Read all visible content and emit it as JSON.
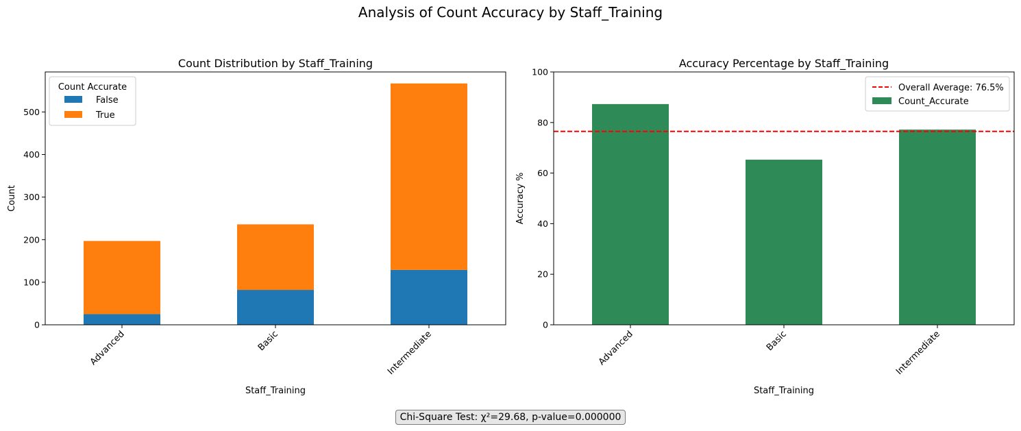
{
  "figure": {
    "suptitle": "Analysis of Count Accuracy by Staff_Training",
    "stats_text": "Chi-Square Test: χ²=29.68, p-value=0.000000"
  },
  "chart_data": [
    {
      "type": "bar",
      "stacked": true,
      "title": "Count Distribution by Staff_Training",
      "xlabel": "Staff_Training",
      "ylabel": "Count",
      "categories": [
        "Advanced",
        "Basic",
        "Intermediate"
      ],
      "series": [
        {
          "name": "False",
          "values": [
            25,
            82,
            129
          ],
          "color": "#1f77b4"
        },
        {
          "name": "True",
          "values": [
            172,
            154,
            438
          ],
          "color": "#ff7f0e"
        }
      ],
      "ylim": [
        0,
        594
      ],
      "yticks": [
        0,
        100,
        200,
        300,
        400,
        500
      ],
      "legend": {
        "title": "Count Accurate",
        "placement": "top-left"
      },
      "grid": false
    },
    {
      "type": "bar",
      "title": "Accuracy Percentage by Staff_Training",
      "xlabel": "Staff_Training",
      "ylabel": "Accuracy %",
      "categories": [
        "Advanced",
        "Basic",
        "Intermediate"
      ],
      "series": [
        {
          "name": "Count_Accurate",
          "values": [
            87.3,
            65.3,
            77.2
          ],
          "color": "#2e8b57"
        }
      ],
      "reference_line": {
        "label": "Overall Average: 76.5%",
        "value": 76.5,
        "color": "#ff0000",
        "style": "dashed"
      },
      "ylim": [
        0,
        100
      ],
      "yticks": [
        0,
        20,
        40,
        60,
        80,
        100
      ],
      "legend": {
        "placement": "top-right"
      },
      "grid": false
    }
  ]
}
